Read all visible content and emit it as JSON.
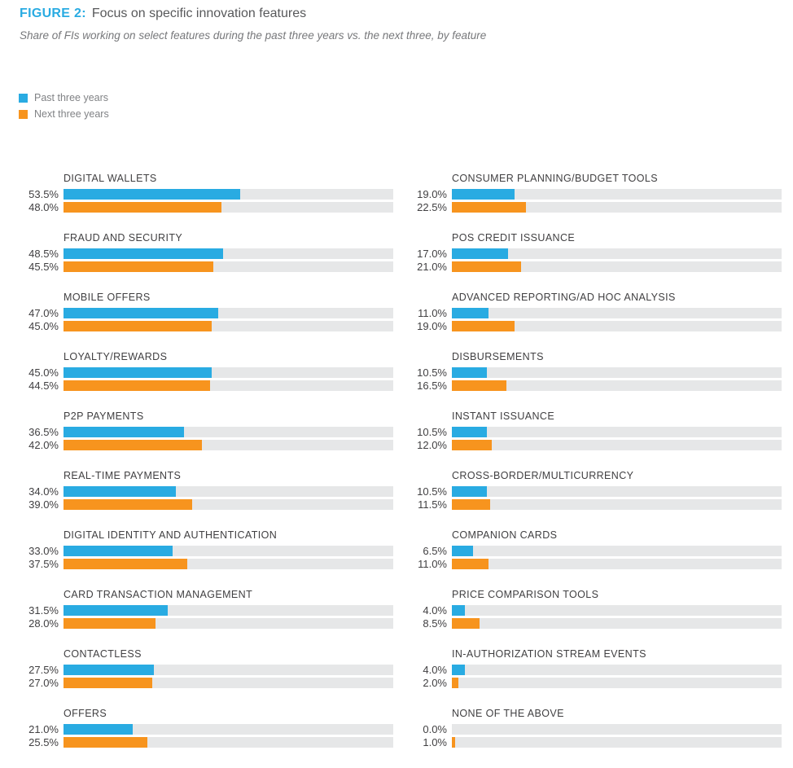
{
  "figure": {
    "label": "FIGURE 2:",
    "title": "Focus on specific innovation features",
    "subtitle": "Share of FIs working on select features during the past three years vs. the next three, by feature"
  },
  "colors": {
    "accent_blue": "#29ABE2",
    "accent_orange": "#F7941E",
    "track_gray": "#E6E7E8",
    "label_dark": "#414042",
    "muted_gray": "#808285"
  },
  "legend": [
    {
      "label": "Past three years",
      "color": "#29ABE2"
    },
    {
      "label": "Next three years",
      "color": "#F7941E"
    }
  ],
  "chart_data": {
    "type": "bar",
    "orientation": "horizontal",
    "value_unit": "percent",
    "axis_range": [
      0,
      100
    ],
    "grid": false,
    "legend_position": "top-left",
    "series_names": [
      "Past three years",
      "Next three years"
    ],
    "columns": [
      {
        "name": "left",
        "features": [
          {
            "label": "DIGITAL WALLETS",
            "past": 53.5,
            "next": 48.0
          },
          {
            "label": "FRAUD AND SECURITY",
            "past": 48.5,
            "next": 45.5
          },
          {
            "label": "MOBILE OFFERS",
            "past": 47.0,
            "next": 45.0
          },
          {
            "label": "LOYALTY/REWARDS",
            "past": 45.0,
            "next": 44.5
          },
          {
            "label": "P2P PAYMENTS",
            "past": 36.5,
            "next": 42.0
          },
          {
            "label": "REAL-TIME PAYMENTS",
            "past": 34.0,
            "next": 39.0
          },
          {
            "label": "DIGITAL IDENTITY AND AUTHENTICATION",
            "past": 33.0,
            "next": 37.5
          },
          {
            "label": "CARD TRANSACTION MANAGEMENT",
            "past": 31.5,
            "next": 28.0
          },
          {
            "label": "CONTACTLESS",
            "past": 27.5,
            "next": 27.0
          },
          {
            "label": "OFFERS",
            "past": 21.0,
            "next": 25.5
          }
        ]
      },
      {
        "name": "right",
        "features": [
          {
            "label": "CONSUMER PLANNING/BUDGET TOOLS",
            "past": 19.0,
            "next": 22.5
          },
          {
            "label": "POS CREDIT ISSUANCE",
            "past": 17.0,
            "next": 21.0
          },
          {
            "label": "ADVANCED REPORTING/AD HOC ANALYSIS",
            "past": 11.0,
            "next": 19.0
          },
          {
            "label": "DISBURSEMENTS",
            "past": 10.5,
            "next": 16.5
          },
          {
            "label": "INSTANT ISSUANCE",
            "past": 10.5,
            "next": 12.0
          },
          {
            "label": "CROSS-BORDER/MULTICURRENCY",
            "past": 10.5,
            "next": 11.5
          },
          {
            "label": "COMPANION CARDS",
            "past": 6.5,
            "next": 11.0
          },
          {
            "label": "PRICE COMPARISON TOOLS",
            "past": 4.0,
            "next": 8.5
          },
          {
            "label": "IN-AUTHORIZATION STREAM EVENTS",
            "past": 4.0,
            "next": 2.0
          },
          {
            "label": "NONE OF THE ABOVE",
            "past": 0.0,
            "next": 1.0
          }
        ]
      }
    ]
  }
}
